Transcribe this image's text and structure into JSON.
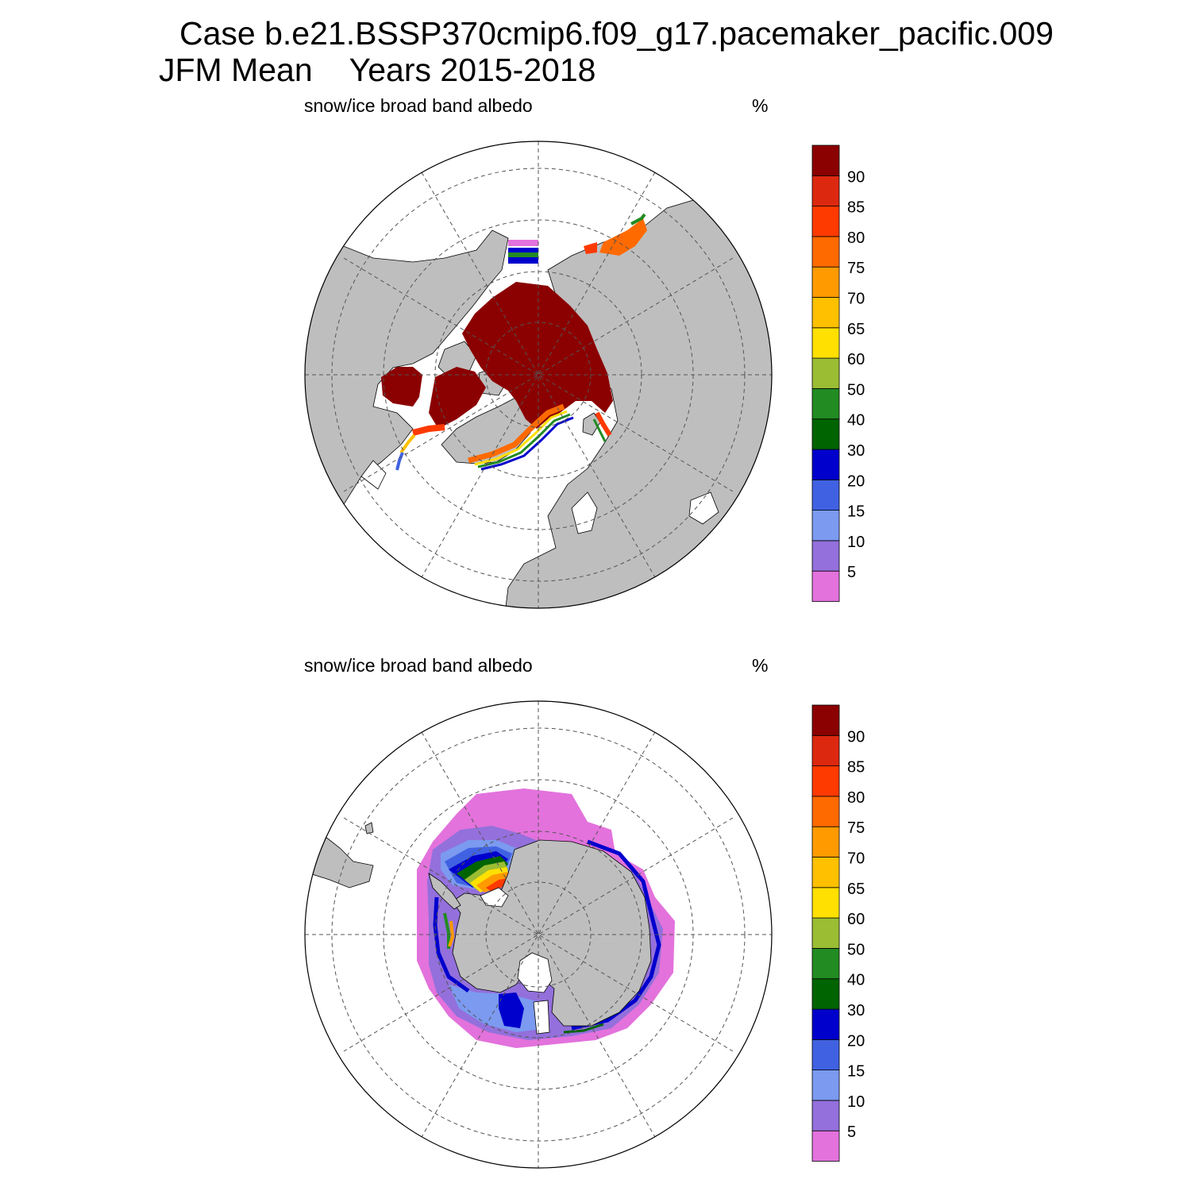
{
  "title": {
    "line1": "Case b.e21.BSSP370cmip6.f09_g17.pacemaker_pacific.009",
    "season": "JFM Mean",
    "years": "Years 2015-2018"
  },
  "colors": {
    "land": "#bebebe",
    "ocean": "#ffffff",
    "levels": [
      "#e372dc",
      "#9370db",
      "#7b9af0",
      "#4062e2",
      "#0000cd",
      "#006400",
      "#228b22",
      "#9bbd34",
      "#ffe000",
      "#ffc000",
      "#ff9a00",
      "#ff6a00",
      "#ff3a00",
      "#dd2810",
      "#8b0000"
    ]
  },
  "panels": [
    {
      "id": "north",
      "hemisphere": "Arctic",
      "long_name": "snow/ice broad band albedo",
      "units": "%"
    },
    {
      "id": "south",
      "hemisphere": "Antarctic",
      "long_name": "snow/ice broad band albedo",
      "units": "%"
    }
  ],
  "chart_data": {
    "type": "heatmap",
    "projection": "polar stereographic",
    "variable": "snow/ice broad band albedo",
    "units": "%",
    "colorbar_labels": [
      "5",
      "10",
      "15",
      "20",
      "30",
      "40",
      "50",
      "60",
      "65",
      "70",
      "75",
      "80",
      "85",
      "90"
    ],
    "colorbar_levels": [
      5,
      10,
      15,
      20,
      30,
      40,
      50,
      60,
      65,
      70,
      75,
      80,
      85,
      90
    ]
  }
}
